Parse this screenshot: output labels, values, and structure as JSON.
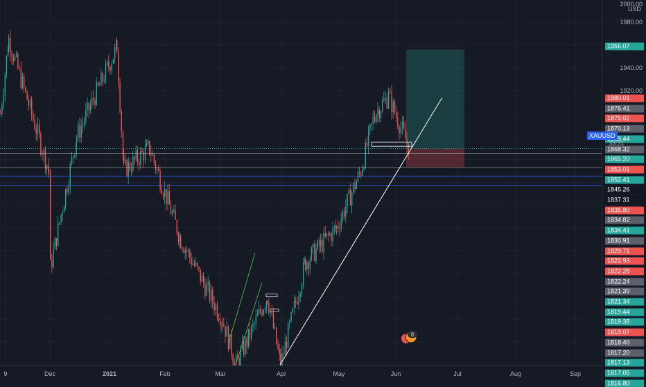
{
  "symbol": "XAUUSD",
  "currency_unit": "USD",
  "countdown": "33:31",
  "event_marker_count": "8",
  "price_axis": {
    "top_partial": "2000.00",
    "ticks": [
      "1980.00",
      "1960.00",
      "1940.00",
      "1920.00"
    ]
  },
  "price_labels": [
    {
      "text": "1956.07",
      "color": "#26a69a"
    },
    {
      "text": "1880.01",
      "color": "#ef5350"
    },
    {
      "text": "1876.41",
      "color": "#5d606b"
    },
    {
      "text": "1875.02",
      "color": "#ef5350"
    },
    {
      "text": "1870.13",
      "color": "#5d606b"
    },
    {
      "text": "1869.44",
      "color": "#26a69a"
    },
    {
      "text": "1868.32",
      "color": "#5d606b"
    },
    {
      "text": "1865.20",
      "color": "#26a69a"
    },
    {
      "text": "1853.01",
      "color": "#ef5350"
    },
    {
      "text": "1852.41",
      "color": "#26a69a"
    },
    {
      "text": "1845.26",
      "color": "#131722"
    },
    {
      "text": "1837.31",
      "color": "#131722"
    },
    {
      "text": "1835.80",
      "color": "#ef5350"
    },
    {
      "text": "1834.82",
      "color": "#5d606b"
    },
    {
      "text": "1834.41",
      "color": "#26a69a"
    },
    {
      "text": "1830.91",
      "color": "#5d606b"
    },
    {
      "text": "1829.71",
      "color": "#ef5350"
    },
    {
      "text": "1822.93",
      "color": "#ef5350"
    },
    {
      "text": "1822.28",
      "color": "#ef5350"
    },
    {
      "text": "1822.24",
      "color": "#5d606b"
    },
    {
      "text": "1821.39",
      "color": "#5d606b"
    },
    {
      "text": "1821.34",
      "color": "#26a69a"
    },
    {
      "text": "1819.44",
      "color": "#26a69a"
    },
    {
      "text": "1819.38",
      "color": "#26a69a"
    },
    {
      "text": "1819.07",
      "color": "#ef5350"
    },
    {
      "text": "1818.40",
      "color": "#5d606b"
    },
    {
      "text": "1817.20",
      "color": "#5d606b"
    },
    {
      "text": "1817.13",
      "color": "#26a69a"
    },
    {
      "text": "1817.05",
      "color": "#26a69a"
    },
    {
      "text": "1816.80",
      "color": "#26a69a"
    }
  ],
  "time_axis": [
    "9",
    "Dec",
    "2021",
    "Feb",
    "Mar",
    "Apr",
    "May",
    "Jun",
    "Jul",
    "Aug",
    "Sep"
  ],
  "colors": {
    "background": "#161a25",
    "bull": "#26a69a",
    "bear": "#ef5350",
    "trendline": "#ffffff",
    "channel": "#4caf50",
    "horizontal_level": "#2962ff",
    "profit_zone": "#26a69a",
    "loss_zone": "#ef5350"
  },
  "chart_data": {
    "type": "candlestick",
    "symbol": "XAUUSD",
    "path": [
      {
        "x": "Nov 2020",
        "y": 1900
      },
      {
        "x": "Nov 2020",
        "y": 1965
      },
      {
        "x": "Dec 2020",
        "y": 1850
      },
      {
        "x": "Dec 2020",
        "y": 1765
      },
      {
        "x": "Dec 2020",
        "y": 1880
      },
      {
        "x": "2021",
        "y": 1958
      },
      {
        "x": "Jan 2021",
        "y": 1850
      },
      {
        "x": "Feb 2021",
        "y": 1870
      },
      {
        "x": "Feb 2021",
        "y": 1790
      },
      {
        "x": "Mar 2021",
        "y": 1720
      },
      {
        "x": "Mar 2021",
        "y": 1680
      },
      {
        "x": "Mar 2021",
        "y": 1740
      },
      {
        "x": "Apr 2021",
        "y": 1680
      },
      {
        "x": "Apr 2021",
        "y": 1770
      },
      {
        "x": "May 2021",
        "y": 1800
      },
      {
        "x": "May 2021",
        "y": 1850
      },
      {
        "x": "May 2021",
        "y": 1900
      },
      {
        "x": "Jun 2021",
        "y": 1915
      },
      {
        "x": "Jun 2021",
        "y": 1869
      }
    ],
    "ylim": [
      1665,
      2005
    ],
    "x_ticks": [
      "9",
      "Dec",
      "2021",
      "Feb",
      "Mar",
      "Apr",
      "May",
      "Jun",
      "Jul",
      "Aug",
      "Sep"
    ],
    "y_ticks": [
      1980,
      1960,
      1940,
      1920
    ],
    "position": {
      "entry": 1869.44,
      "target": 1956.07,
      "stop": 1853.01
    },
    "horizontal_levels": [
      1865.2,
      1853.01,
      1845.26,
      1837.31
    ],
    "trendline": {
      "from": {
        "x": "Apr 2021",
        "y": 1680
      },
      "to": {
        "x": "Jun 2021",
        "y": 1895
      }
    },
    "grid": true
  }
}
